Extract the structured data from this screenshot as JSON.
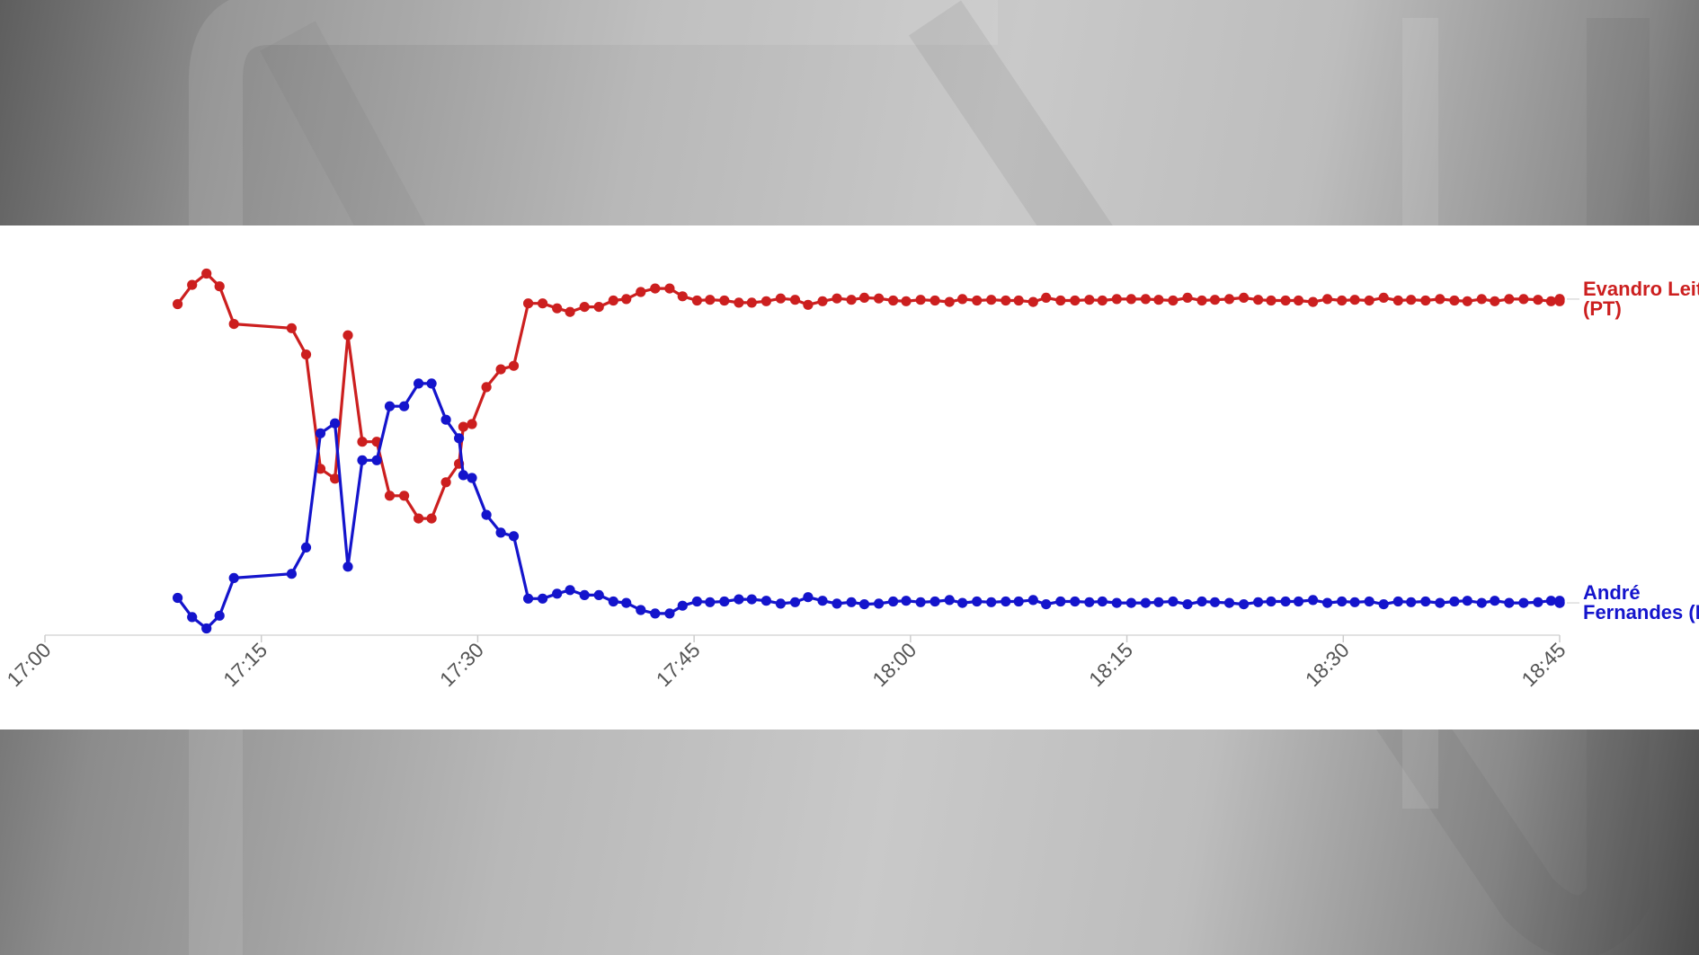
{
  "chart_data": {
    "type": "line",
    "title": "",
    "xlabel": "",
    "ylabel": "",
    "x_ticks": [
      "17:00",
      "17:15",
      "17:30",
      "17:45",
      "18:00",
      "18:15",
      "18:30",
      "18:45"
    ],
    "x_range_minutes": [
      0,
      105
    ],
    "grid": false,
    "legend": "inline-right",
    "series": [
      {
        "name": "Evandro Leitão (PT)",
        "label_lines": [
          "Evandro Leitão",
          "(PT)"
        ],
        "color": "#cc1f1f",
        "points": [
          [
            9.2,
            70.7
          ],
          [
            10.2,
            73.4
          ],
          [
            11.2,
            75.0
          ],
          [
            12.1,
            73.2
          ],
          [
            13.1,
            67.9
          ],
          [
            17.1,
            67.3
          ],
          [
            18.1,
            63.6
          ],
          [
            19.1,
            47.5
          ],
          [
            20.1,
            46.1
          ],
          [
            21.0,
            66.3
          ],
          [
            22.0,
            51.3
          ],
          [
            23.0,
            51.3
          ],
          [
            23.9,
            43.7
          ],
          [
            24.9,
            43.7
          ],
          [
            25.9,
            40.5
          ],
          [
            26.8,
            40.5
          ],
          [
            27.8,
            45.6
          ],
          [
            28.7,
            48.2
          ],
          [
            29.0,
            53.4
          ],
          [
            29.6,
            53.8
          ],
          [
            30.6,
            59.0
          ],
          [
            31.6,
            61.5
          ],
          [
            32.5,
            62.0
          ],
          [
            33.5,
            70.8
          ],
          [
            34.5,
            70.8
          ],
          [
            35.5,
            70.1
          ],
          [
            36.4,
            69.6
          ],
          [
            37.4,
            70.3
          ],
          [
            38.4,
            70.3
          ],
          [
            39.4,
            71.2
          ],
          [
            40.3,
            71.4
          ],
          [
            41.3,
            72.4
          ],
          [
            42.3,
            72.9
          ],
          [
            43.3,
            72.9
          ],
          [
            44.2,
            71.8
          ],
          [
            45.2,
            71.2
          ],
          [
            46.1,
            71.3
          ],
          [
            47.1,
            71.2
          ],
          [
            48.1,
            70.9
          ],
          [
            49.0,
            70.9
          ],
          [
            50.0,
            71.1
          ],
          [
            51.0,
            71.5
          ],
          [
            52.0,
            71.3
          ],
          [
            52.9,
            70.6
          ],
          [
            53.9,
            71.1
          ],
          [
            54.9,
            71.5
          ],
          [
            55.9,
            71.3
          ],
          [
            56.8,
            71.6
          ],
          [
            57.8,
            71.5
          ],
          [
            58.8,
            71.2
          ],
          [
            59.7,
            71.1
          ],
          [
            60.7,
            71.3
          ],
          [
            61.7,
            71.2
          ],
          [
            62.7,
            71.0
          ],
          [
            63.6,
            71.4
          ],
          [
            64.6,
            71.2
          ],
          [
            65.6,
            71.3
          ],
          [
            66.6,
            71.2
          ],
          [
            67.5,
            71.2
          ],
          [
            68.5,
            71.0
          ],
          [
            69.4,
            71.6
          ],
          [
            70.4,
            71.2
          ],
          [
            71.4,
            71.2
          ],
          [
            72.4,
            71.3
          ],
          [
            73.3,
            71.2
          ],
          [
            74.3,
            71.4
          ],
          [
            75.3,
            71.4
          ],
          [
            76.3,
            71.4
          ],
          [
            77.2,
            71.3
          ],
          [
            78.2,
            71.2
          ],
          [
            79.2,
            71.6
          ],
          [
            80.2,
            71.2
          ],
          [
            81.1,
            71.3
          ],
          [
            82.1,
            71.4
          ],
          [
            83.1,
            71.6
          ],
          [
            84.1,
            71.3
          ],
          [
            85.0,
            71.2
          ],
          [
            86.0,
            71.2
          ],
          [
            86.9,
            71.2
          ],
          [
            87.9,
            71.0
          ],
          [
            88.9,
            71.4
          ],
          [
            89.9,
            71.2
          ],
          [
            90.8,
            71.3
          ],
          [
            91.8,
            71.2
          ],
          [
            92.8,
            71.6
          ],
          [
            93.8,
            71.2
          ],
          [
            94.7,
            71.3
          ],
          [
            95.7,
            71.2
          ],
          [
            96.7,
            71.4
          ],
          [
            97.7,
            71.2
          ],
          [
            98.6,
            71.1
          ],
          [
            99.6,
            71.4
          ],
          [
            100.5,
            71.1
          ],
          [
            101.5,
            71.4
          ],
          [
            102.5,
            71.4
          ],
          [
            103.5,
            71.3
          ],
          [
            104.4,
            71.1
          ],
          [
            105.0,
            71.3
          ],
          [
            105.0,
            71.4
          ],
          [
            105.0,
            71.1
          ],
          [
            105.0,
            71.4
          ]
        ]
      },
      {
        "name": "André Fernandes (PL)",
        "label_lines": [
          "André",
          "Fernandes (PL)"
        ],
        "color": "#1414cc",
        "points": [
          [
            9.2,
            29.3
          ],
          [
            10.2,
            26.6
          ],
          [
            11.2,
            25.0
          ],
          [
            12.1,
            26.8
          ],
          [
            13.1,
            32.1
          ],
          [
            17.1,
            32.7
          ],
          [
            18.1,
            36.4
          ],
          [
            19.1,
            52.5
          ],
          [
            20.1,
            53.9
          ],
          [
            21.0,
            33.7
          ],
          [
            22.0,
            48.7
          ],
          [
            23.0,
            48.7
          ],
          [
            23.9,
            56.3
          ],
          [
            24.9,
            56.3
          ],
          [
            25.9,
            59.5
          ],
          [
            26.8,
            59.5
          ],
          [
            27.8,
            54.4
          ],
          [
            28.7,
            51.8
          ],
          [
            29.0,
            46.6
          ],
          [
            29.6,
            46.2
          ],
          [
            30.6,
            41.0
          ],
          [
            31.6,
            38.5
          ],
          [
            32.5,
            38.0
          ],
          [
            33.5,
            29.2
          ],
          [
            34.5,
            29.2
          ],
          [
            35.5,
            29.9
          ],
          [
            36.4,
            30.4
          ],
          [
            37.4,
            29.7
          ],
          [
            38.4,
            29.7
          ],
          [
            39.4,
            28.8
          ],
          [
            40.3,
            28.6
          ],
          [
            41.3,
            27.6
          ],
          [
            42.3,
            27.1
          ],
          [
            43.3,
            27.1
          ],
          [
            44.2,
            28.2
          ],
          [
            45.2,
            28.8
          ],
          [
            46.1,
            28.7
          ],
          [
            47.1,
            28.8
          ],
          [
            48.1,
            29.1
          ],
          [
            49.0,
            29.1
          ],
          [
            50.0,
            28.9
          ],
          [
            51.0,
            28.5
          ],
          [
            52.0,
            28.7
          ],
          [
            52.9,
            29.4
          ],
          [
            53.9,
            28.9
          ],
          [
            54.9,
            28.5
          ],
          [
            55.9,
            28.7
          ],
          [
            56.8,
            28.4
          ],
          [
            57.8,
            28.5
          ],
          [
            58.8,
            28.8
          ],
          [
            59.7,
            28.9
          ],
          [
            60.7,
            28.7
          ],
          [
            61.7,
            28.8
          ],
          [
            62.7,
            29.0
          ],
          [
            63.6,
            28.6
          ],
          [
            64.6,
            28.8
          ],
          [
            65.6,
            28.7
          ],
          [
            66.6,
            28.8
          ],
          [
            67.5,
            28.8
          ],
          [
            68.5,
            29.0
          ],
          [
            69.4,
            28.4
          ],
          [
            70.4,
            28.8
          ],
          [
            71.4,
            28.8
          ],
          [
            72.4,
            28.7
          ],
          [
            73.3,
            28.8
          ],
          [
            74.3,
            28.6
          ],
          [
            75.3,
            28.6
          ],
          [
            76.3,
            28.6
          ],
          [
            77.2,
            28.7
          ],
          [
            78.2,
            28.8
          ],
          [
            79.2,
            28.4
          ],
          [
            80.2,
            28.8
          ],
          [
            81.1,
            28.7
          ],
          [
            82.1,
            28.6
          ],
          [
            83.1,
            28.4
          ],
          [
            84.1,
            28.7
          ],
          [
            85.0,
            28.8
          ],
          [
            86.0,
            28.8
          ],
          [
            86.9,
            28.8
          ],
          [
            87.9,
            29.0
          ],
          [
            88.9,
            28.6
          ],
          [
            89.9,
            28.8
          ],
          [
            90.8,
            28.7
          ],
          [
            91.8,
            28.8
          ],
          [
            92.8,
            28.4
          ],
          [
            93.8,
            28.8
          ],
          [
            94.7,
            28.7
          ],
          [
            95.7,
            28.8
          ],
          [
            96.7,
            28.6
          ],
          [
            97.7,
            28.8
          ],
          [
            98.6,
            28.9
          ],
          [
            99.6,
            28.6
          ],
          [
            100.5,
            28.9
          ],
          [
            101.5,
            28.6
          ],
          [
            102.5,
            28.6
          ],
          [
            103.5,
            28.7
          ],
          [
            104.4,
            28.9
          ],
          [
            105.0,
            28.7
          ],
          [
            105.0,
            28.6
          ],
          [
            105.0,
            28.9
          ],
          [
            105.0,
            28.6
          ]
        ]
      }
    ]
  }
}
